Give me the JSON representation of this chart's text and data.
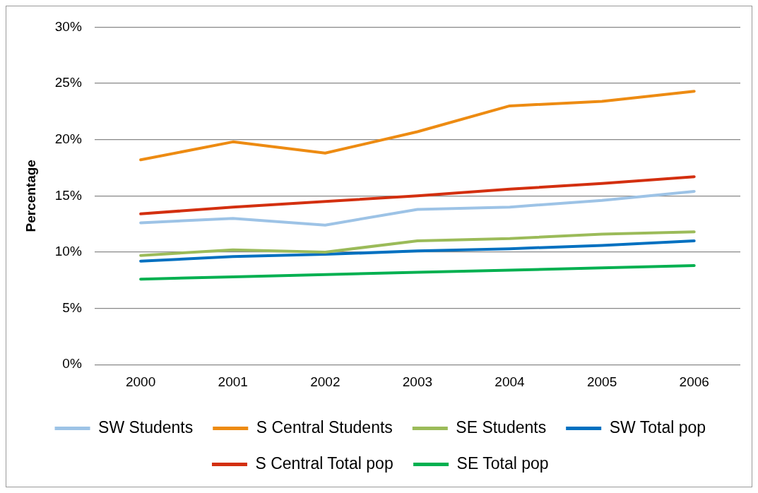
{
  "chart_data": {
    "type": "line",
    "ylabel": "Percentage",
    "categories": [
      "2000",
      "2001",
      "2002",
      "2003",
      "2004",
      "2005",
      "2006"
    ],
    "series": [
      {
        "name": "SW Students",
        "color": "#9dc3e6",
        "values": [
          12.6,
          13.0,
          12.4,
          13.8,
          14.0,
          14.6,
          15.4
        ]
      },
      {
        "name": "S Central Students",
        "color": "#ed8b12",
        "values": [
          18.2,
          19.8,
          18.8,
          20.7,
          23.0,
          23.4,
          24.3
        ]
      },
      {
        "name": "SE Students",
        "color": "#9bbb59",
        "values": [
          9.7,
          10.2,
          10.0,
          11.0,
          11.2,
          11.6,
          11.8
        ]
      },
      {
        "name": "SW Total pop",
        "color": "#0070c0",
        "values": [
          9.2,
          9.6,
          9.8,
          10.1,
          10.3,
          10.6,
          11.0
        ]
      },
      {
        "name": "S Central Total pop",
        "color": "#d32f0f",
        "values": [
          13.4,
          14.0,
          14.5,
          15.0,
          15.6,
          16.1,
          16.7
        ]
      },
      {
        "name": "SE Total pop",
        "color": "#00b050",
        "values": [
          7.6,
          7.8,
          8.0,
          8.2,
          8.4,
          8.6,
          8.8
        ]
      }
    ],
    "ylim": [
      0,
      30
    ],
    "yticks": [
      {
        "value": 0,
        "label": "0%"
      },
      {
        "value": 5,
        "label": "5%"
      },
      {
        "value": 10,
        "label": "10%"
      },
      {
        "value": 15,
        "label": "15%"
      },
      {
        "value": 20,
        "label": "20%"
      },
      {
        "value": 25,
        "label": "25%"
      },
      {
        "value": 30,
        "label": "30%"
      }
    ],
    "grid": "y",
    "legend": "bottom",
    "marker": "none",
    "line_style": "solid"
  }
}
